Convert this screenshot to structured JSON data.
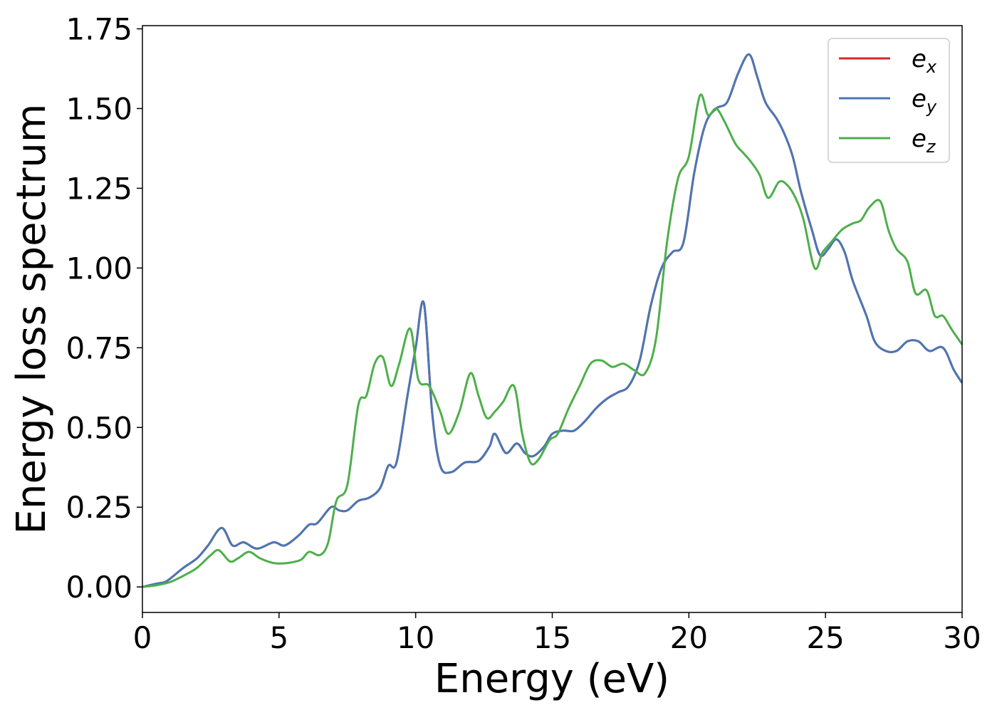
{
  "chart_data": {
    "type": "line",
    "title": "",
    "xlabel": "Energy (eV)",
    "ylabel": "Energy loss spectrum",
    "xlim": [
      0,
      30
    ],
    "ylim": [
      -0.08,
      1.76
    ],
    "xticks": [
      0,
      5,
      10,
      15,
      20,
      25,
      30
    ],
    "yticks": [
      0.0,
      0.25,
      0.5,
      0.75,
      1.0,
      1.25,
      1.5,
      1.75
    ],
    "xtick_labels": [
      "0",
      "5",
      "10",
      "15",
      "20",
      "25",
      "30"
    ],
    "ytick_labels": [
      "0.00",
      "0.25",
      "0.50",
      "0.75",
      "1.00",
      "1.25",
      "1.50",
      "1.75"
    ],
    "grid": false,
    "legend_position": "top-right",
    "series": [
      {
        "name": "e",
        "subscript": "x",
        "color": "#d62728",
        "x": [
          0,
          0.5,
          0.8,
          1.0,
          1.5,
          2.0,
          2.4,
          2.9,
          3.3,
          3.7,
          4.2,
          4.8,
          5.2,
          5.7,
          6.1,
          6.4,
          6.9,
          7.2,
          7.5,
          7.9,
          8.3,
          8.7,
          9.0,
          9.3,
          9.7,
          10.0,
          10.3,
          10.6,
          10.9,
          11.3,
          11.8,
          12.3,
          12.7,
          12.9,
          13.3,
          13.7,
          14.0,
          14.3,
          14.7,
          15.0,
          15.4,
          15.8,
          16.2,
          16.6,
          17.0,
          17.4,
          17.8,
          18.2,
          18.6,
          19.0,
          19.4,
          19.8,
          20.2,
          20.6,
          21.0,
          21.4,
          21.8,
          22.2,
          22.5,
          22.8,
          23.2,
          23.5,
          23.8,
          24.1,
          24.5,
          24.8,
          25.1,
          25.4,
          25.7,
          26.0,
          26.5,
          26.8,
          27.2,
          27.6,
          28.0,
          28.4,
          28.8,
          29.3,
          29.7,
          30.0
        ],
        "values": [
          0.0,
          0.01,
          0.015,
          0.025,
          0.06,
          0.09,
          0.13,
          0.185,
          0.13,
          0.14,
          0.12,
          0.14,
          0.13,
          0.16,
          0.195,
          0.2,
          0.25,
          0.24,
          0.24,
          0.27,
          0.28,
          0.31,
          0.38,
          0.39,
          0.6,
          0.75,
          0.89,
          0.55,
          0.38,
          0.36,
          0.39,
          0.395,
          0.44,
          0.48,
          0.42,
          0.45,
          0.42,
          0.41,
          0.44,
          0.48,
          0.49,
          0.49,
          0.52,
          0.56,
          0.59,
          0.61,
          0.63,
          0.71,
          0.88,
          1.0,
          1.05,
          1.08,
          1.3,
          1.45,
          1.5,
          1.52,
          1.61,
          1.67,
          1.6,
          1.52,
          1.47,
          1.42,
          1.35,
          1.24,
          1.12,
          1.04,
          1.06,
          1.09,
          1.05,
          0.96,
          0.85,
          0.77,
          0.74,
          0.74,
          0.77,
          0.77,
          0.74,
          0.75,
          0.68,
          0.64
        ]
      },
      {
        "name": "e",
        "subscript": "y",
        "color": "#4a77b4",
        "x": [
          0,
          0.5,
          0.8,
          1.0,
          1.5,
          2.0,
          2.4,
          2.9,
          3.3,
          3.7,
          4.2,
          4.8,
          5.2,
          5.7,
          6.1,
          6.4,
          6.9,
          7.2,
          7.5,
          7.9,
          8.3,
          8.7,
          9.0,
          9.3,
          9.7,
          10.0,
          10.3,
          10.6,
          10.9,
          11.3,
          11.8,
          12.3,
          12.7,
          12.9,
          13.3,
          13.7,
          14.0,
          14.3,
          14.7,
          15.0,
          15.4,
          15.8,
          16.2,
          16.6,
          17.0,
          17.4,
          17.8,
          18.2,
          18.6,
          19.0,
          19.4,
          19.8,
          20.2,
          20.6,
          21.0,
          21.4,
          21.8,
          22.2,
          22.5,
          22.8,
          23.2,
          23.5,
          23.8,
          24.1,
          24.5,
          24.8,
          25.1,
          25.4,
          25.7,
          26.0,
          26.5,
          26.8,
          27.2,
          27.6,
          28.0,
          28.4,
          28.8,
          29.3,
          29.7,
          30.0
        ],
        "values": [
          0.0,
          0.01,
          0.015,
          0.025,
          0.06,
          0.09,
          0.13,
          0.185,
          0.13,
          0.14,
          0.12,
          0.14,
          0.13,
          0.16,
          0.195,
          0.2,
          0.25,
          0.24,
          0.24,
          0.27,
          0.28,
          0.31,
          0.38,
          0.39,
          0.6,
          0.75,
          0.89,
          0.55,
          0.38,
          0.36,
          0.39,
          0.395,
          0.44,
          0.48,
          0.42,
          0.45,
          0.42,
          0.41,
          0.44,
          0.48,
          0.49,
          0.49,
          0.52,
          0.56,
          0.59,
          0.61,
          0.63,
          0.71,
          0.88,
          1.0,
          1.05,
          1.08,
          1.3,
          1.45,
          1.5,
          1.52,
          1.61,
          1.67,
          1.6,
          1.52,
          1.47,
          1.42,
          1.35,
          1.24,
          1.12,
          1.04,
          1.06,
          1.09,
          1.05,
          0.96,
          0.85,
          0.77,
          0.74,
          0.74,
          0.77,
          0.77,
          0.74,
          0.75,
          0.68,
          0.64
        ]
      },
      {
        "name": "e",
        "subscript": "z",
        "color": "#4daf4a",
        "x": [
          0,
          0.5,
          1.0,
          1.5,
          2.0,
          2.5,
          2.8,
          3.2,
          3.5,
          3.9,
          4.3,
          4.8,
          5.3,
          5.8,
          6.1,
          6.5,
          6.8,
          7.1,
          7.5,
          7.9,
          8.2,
          8.5,
          8.8,
          9.1,
          9.4,
          9.8,
          10.1,
          10.5,
          10.9,
          11.2,
          11.6,
          12.0,
          12.3,
          12.6,
          12.9,
          13.2,
          13.6,
          13.9,
          14.2,
          14.5,
          14.9,
          15.2,
          15.6,
          16.0,
          16.4,
          16.8,
          17.2,
          17.6,
          18.0,
          18.4,
          18.8,
          19.2,
          19.6,
          20.0,
          20.4,
          20.7,
          21.0,
          21.3,
          21.7,
          22.0,
          22.3,
          22.6,
          22.9,
          23.3,
          23.6,
          23.9,
          24.2,
          24.6,
          24.9,
          25.2,
          25.6,
          26.0,
          26.3,
          26.6,
          27.0,
          27.3,
          27.6,
          28.0,
          28.3,
          28.7,
          29.0,
          29.3,
          29.6,
          30.0
        ],
        "values": [
          0.0,
          0.005,
          0.015,
          0.035,
          0.06,
          0.1,
          0.115,
          0.08,
          0.09,
          0.11,
          0.09,
          0.075,
          0.075,
          0.085,
          0.11,
          0.1,
          0.14,
          0.27,
          0.32,
          0.57,
          0.6,
          0.7,
          0.72,
          0.63,
          0.7,
          0.81,
          0.65,
          0.63,
          0.55,
          0.48,
          0.55,
          0.67,
          0.6,
          0.53,
          0.55,
          0.58,
          0.63,
          0.48,
          0.39,
          0.4,
          0.46,
          0.48,
          0.56,
          0.63,
          0.7,
          0.71,
          0.69,
          0.7,
          0.68,
          0.67,
          0.78,
          1.08,
          1.28,
          1.35,
          1.54,
          1.48,
          1.5,
          1.46,
          1.39,
          1.36,
          1.33,
          1.29,
          1.22,
          1.27,
          1.26,
          1.22,
          1.15,
          1.0,
          1.05,
          1.08,
          1.12,
          1.14,
          1.15,
          1.19,
          1.21,
          1.12,
          1.06,
          1.02,
          0.92,
          0.93,
          0.85,
          0.85,
          0.81,
          0.76
        ]
      }
    ]
  }
}
